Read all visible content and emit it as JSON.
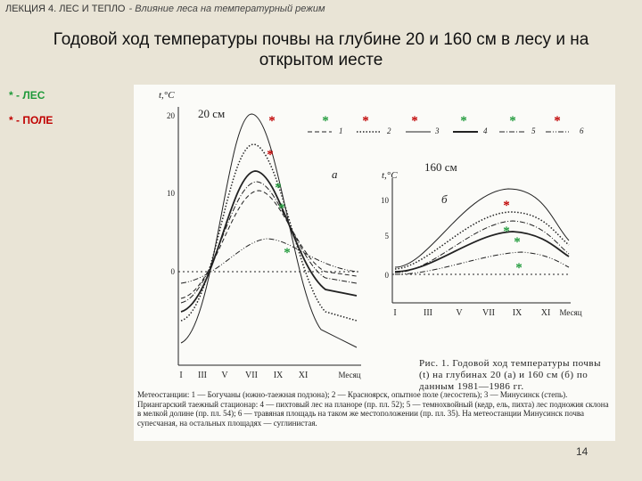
{
  "header": {
    "lecture": "ЛЕКЦИЯ 4. ЛЕС И ТЕПЛО",
    "topic": "-  Влияние леса на температурный режим"
  },
  "title": "Годовой ход температуры почвы на глубине 20 и 160 см в лесу и на открытом иесте",
  "legend": [
    {
      "text": "* - ЛЕС",
      "color": "#1f9a3a"
    },
    {
      "text": "* - ПОЛЕ",
      "color": "#c00000"
    }
  ],
  "figure": {
    "panel_a": {
      "depth": "20 см",
      "y_label": "t,°C",
      "y_ticks": [
        "20",
        "10",
        "0"
      ],
      "months": [
        "I",
        "III",
        "V",
        "VII",
        "IX",
        "XI",
        "Месяц"
      ],
      "letter": "а"
    },
    "panel_b": {
      "depth": "160 см",
      "y_label": "t,°C",
      "y_ticks": [
        "10",
        "5",
        "0"
      ],
      "months": [
        "I",
        "III",
        "V",
        "VII",
        "IX",
        "XI",
        "Месяц"
      ],
      "letter": "б"
    },
    "line_legend": [
      "1",
      "2",
      "3",
      "4",
      "5",
      "6"
    ],
    "markers": [
      {
        "text": "*",
        "color": "#c00000"
      },
      {
        "text": "*",
        "color": "#1f9a3a"
      },
      {
        "text": "*",
        "color": "#c00000"
      },
      {
        "text": "*",
        "color": "#c00000"
      },
      {
        "text": "*",
        "color": "#1f9a3a"
      },
      {
        "text": "*",
        "color": "#1f9a3a"
      },
      {
        "text": "*",
        "color": "#c00000"
      },
      {
        "text": "*",
        "color": "#c00000"
      },
      {
        "text": "*",
        "color": "#1f9a3a"
      },
      {
        "text": "*",
        "color": "#1f9a3a"
      },
      {
        "text": "*",
        "color": "#1f9a3a"
      },
      {
        "text": "*",
        "color": "#c00000"
      },
      {
        "text": "*",
        "color": "#1f9a3a"
      },
      {
        "text": "*",
        "color": "#1f9a3a"
      },
      {
        "text": "*",
        "color": "#1f9a3a"
      }
    ],
    "caption": "Рис. 1. Годовой ход температуры почвы (t) на глубинах 20 (а) и 160 см (б) по данным 1981—1986 гг.",
    "stations": "Метеостанции: 1 — Богучаны (южно-таежная подзона); 2 — Красноярск, опытное поле (лесостепь); 3 — Минусинск (степь). Приангарский таежный стационар: 4 — пихтовый лес на планоре (пр. пл. 52); 5 — темнохвойный (кедр, ель, пихта) лес подножия склона в мелкой долине (пр. пл. 54); 6 — травяная площадь на таком же местоположении (пр. пл. 35). На метеостанции Минусинск почва супесчаная, на остальных площадях — суглинистая."
  },
  "page_number": "14"
}
